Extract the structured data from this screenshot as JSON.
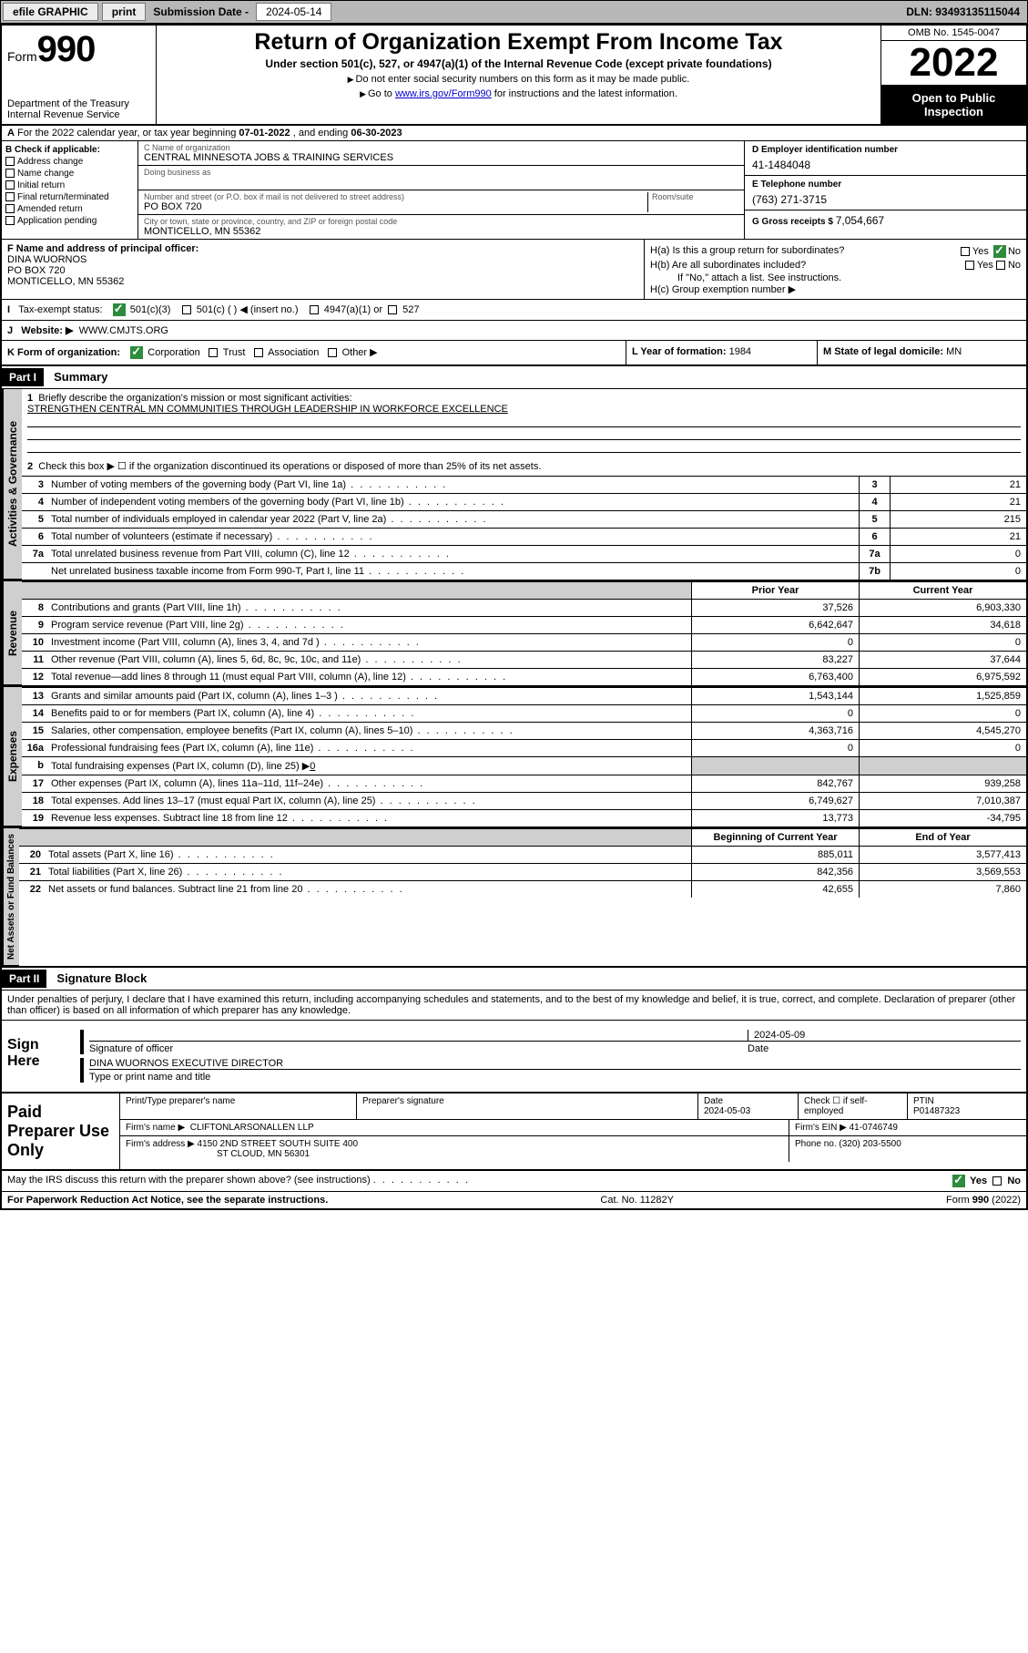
{
  "topbar": {
    "efile": "efile GRAPHIC",
    "print": "print",
    "sub_label": "Submission Date - ",
    "sub_date": "2024-05-14",
    "dln": "DLN: 93493135115044"
  },
  "header": {
    "form_label": "Form",
    "form_num": "990",
    "dept": "Department of the Treasury\nInternal Revenue Service",
    "title": "Return of Organization Exempt From Income Tax",
    "sub": "Under section 501(c), 527, or 4947(a)(1) of the Internal Revenue Code (except private foundations)",
    "sub2": "Do not enter social security numbers on this form as it may be made public.",
    "sub3_pre": "Go to ",
    "sub3_link": "www.irs.gov/Form990",
    "sub3_post": " for instructions and the latest information.",
    "omb": "OMB No. 1545-0047",
    "taxyear": "2022",
    "inspection": "Open to Public Inspection"
  },
  "row_a": {
    "text_pre": "For the 2022 calendar year, or tax year beginning ",
    "begin": "07-01-2022",
    "mid": " , and ending ",
    "end": "06-30-2023"
  },
  "box_b": {
    "hdr": "B Check if applicable:",
    "opts": [
      "Address change",
      "Name change",
      "Initial return",
      "Final return/terminated",
      "Amended return",
      "Application pending"
    ]
  },
  "box_c": {
    "name_lab": "C Name of organization",
    "name": "CENTRAL MINNESOTA JOBS & TRAINING SERVICES",
    "dba_lab": "Doing business as",
    "street_lab": "Number and street (or P.O. box if mail is not delivered to street address)",
    "room_lab": "Room/suite",
    "street": "PO BOX 720",
    "city_lab": "City or town, state or province, country, and ZIP or foreign postal code",
    "city": "MONTICELLO, MN  55362"
  },
  "box_d": {
    "lab": "D Employer identification number",
    "val": "41-1484048"
  },
  "box_e": {
    "lab": "E Telephone number",
    "val": "(763) 271-3715"
  },
  "box_g": {
    "lab": "G Gross receipts $",
    "val": "7,054,667"
  },
  "box_f": {
    "lab": "F Name and address of principal officer:",
    "name": "DINA WUORNOS",
    "addr1": "PO BOX 720",
    "addr2": "MONTICELLO, MN  55362"
  },
  "box_h": {
    "a_lab": "H(a)  Is this a group return for subordinates?",
    "yes": "Yes",
    "no": "No",
    "b_lab": "H(b)  Are all subordinates included?",
    "b_note": "If \"No,\" attach a list. See instructions.",
    "c_lab": "H(c)  Group exemption number ▶"
  },
  "row_i": {
    "lab": "Tax-exempt status:",
    "o1": "501(c)(3)",
    "o2": "501(c) (   ) ◀ (insert no.)",
    "o3": "4947(a)(1) or",
    "o4": "527"
  },
  "row_j": {
    "lab": "Website: ▶",
    "val": "WWW.CMJTS.ORG"
  },
  "row_k": {
    "lab": "K Form of organization:",
    "o1": "Corporation",
    "o2": "Trust",
    "o3": "Association",
    "o4": "Other ▶"
  },
  "row_l": {
    "lab": "L Year of formation:",
    "val": "1984"
  },
  "row_m": {
    "lab": "M State of legal domicile:",
    "val": "MN"
  },
  "part1": {
    "hdr": "Part I",
    "title": "Summary"
  },
  "vtabs": {
    "gov": "Activities & Governance",
    "rev": "Revenue",
    "exp": "Expenses",
    "net": "Net Assets or Fund Balances"
  },
  "mission": {
    "lab": "Briefly describe the organization's mission or most significant activities:",
    "val": "STRENGTHEN CENTRAL MN COMMUNITIES THROUGH LEADERSHIP IN WORKFORCE EXCELLENCE"
  },
  "line2": "Check this box ▶ ☐  if the organization discontinued its operations or disposed of more than 25% of its net assets.",
  "gov_lines": [
    {
      "n": "3",
      "d": "Number of voting members of the governing body (Part VI, line 1a)",
      "b": "3",
      "v": "21"
    },
    {
      "n": "4",
      "d": "Number of independent voting members of the governing body (Part VI, line 1b)",
      "b": "4",
      "v": "21"
    },
    {
      "n": "5",
      "d": "Total number of individuals employed in calendar year 2022 (Part V, line 2a)",
      "b": "5",
      "v": "215"
    },
    {
      "n": "6",
      "d": "Total number of volunteers (estimate if necessary)",
      "b": "6",
      "v": "21"
    },
    {
      "n": "7a",
      "d": "Total unrelated business revenue from Part VIII, column (C), line 12",
      "b": "7a",
      "v": "0"
    },
    {
      "n": "",
      "d": "Net unrelated business taxable income from Form 990-T, Part I, line 11",
      "b": "7b",
      "v": "0"
    }
  ],
  "col_hdrs": {
    "prior": "Prior Year",
    "curr": "Current Year"
  },
  "rev_lines": [
    {
      "n": "8",
      "d": "Contributions and grants (Part VIII, line 1h)",
      "p": "37,526",
      "c": "6,903,330"
    },
    {
      "n": "9",
      "d": "Program service revenue (Part VIII, line 2g)",
      "p": "6,642,647",
      "c": "34,618"
    },
    {
      "n": "10",
      "d": "Investment income (Part VIII, column (A), lines 3, 4, and 7d )",
      "p": "0",
      "c": "0"
    },
    {
      "n": "11",
      "d": "Other revenue (Part VIII, column (A), lines 5, 6d, 8c, 9c, 10c, and 11e)",
      "p": "83,227",
      "c": "37,644"
    },
    {
      "n": "12",
      "d": "Total revenue—add lines 8 through 11 (must equal Part VIII, column (A), line 12)",
      "p": "6,763,400",
      "c": "6,975,592"
    }
  ],
  "exp_lines": [
    {
      "n": "13",
      "d": "Grants and similar amounts paid (Part IX, column (A), lines 1–3 )",
      "p": "1,543,144",
      "c": "1,525,859"
    },
    {
      "n": "14",
      "d": "Benefits paid to or for members (Part IX, column (A), line 4)",
      "p": "0",
      "c": "0"
    },
    {
      "n": "15",
      "d": "Salaries, other compensation, employee benefits (Part IX, column (A), lines 5–10)",
      "p": "4,363,716",
      "c": "4,545,270"
    },
    {
      "n": "16a",
      "d": "Professional fundraising fees (Part IX, column (A), line 11e)",
      "p": "0",
      "c": "0"
    }
  ],
  "line16b": {
    "n": "b",
    "d": "Total fundraising expenses (Part IX, column (D), line 25) ▶",
    "v": "0"
  },
  "exp_lines2": [
    {
      "n": "17",
      "d": "Other expenses (Part IX, column (A), lines 11a–11d, 11f–24e)",
      "p": "842,767",
      "c": "939,258"
    },
    {
      "n": "18",
      "d": "Total expenses. Add lines 13–17 (must equal Part IX, column (A), line 25)",
      "p": "6,749,627",
      "c": "7,010,387"
    },
    {
      "n": "19",
      "d": "Revenue less expenses. Subtract line 18 from line 12",
      "p": "13,773",
      "c": "-34,795"
    }
  ],
  "net_hdrs": {
    "begin": "Beginning of Current Year",
    "end": "End of Year"
  },
  "net_lines": [
    {
      "n": "20",
      "d": "Total assets (Part X, line 16)",
      "p": "885,011",
      "c": "3,577,413"
    },
    {
      "n": "21",
      "d": "Total liabilities (Part X, line 26)",
      "p": "842,356",
      "c": "3,569,553"
    },
    {
      "n": "22",
      "d": "Net assets or fund balances. Subtract line 21 from line 20",
      "p": "42,655",
      "c": "7,860"
    }
  ],
  "part2": {
    "hdr": "Part II",
    "title": "Signature Block"
  },
  "declare": "Under penalties of perjury, I declare that I have examined this return, including accompanying schedules and statements, and to the best of my knowledge and belief, it is true, correct, and complete. Declaration of preparer (other than officer) is based on all information of which preparer has any knowledge.",
  "sign": {
    "here": "Sign Here",
    "sig_lab": "Signature of officer",
    "date_lab": "Date",
    "date": "2024-05-09",
    "name": "DINA WUORNOS  EXECUTIVE DIRECTOR",
    "name_lab": "Type or print name and title"
  },
  "paid": {
    "hdr": "Paid Preparer Use Only",
    "pt_name_lab": "Print/Type preparer's name",
    "sig_lab": "Preparer's signature",
    "date_lab": "Date",
    "date": "2024-05-03",
    "check_lab": "Check ☐ if self-employed",
    "ptin_lab": "PTIN",
    "ptin": "P01487323",
    "firm_name_lab": "Firm's name    ▶",
    "firm_name": "CLIFTONLARSONALLEN LLP",
    "firm_ein_lab": "Firm's EIN ▶",
    "firm_ein": "41-0746749",
    "firm_addr_lab": "Firm's address ▶",
    "firm_addr1": "4150 2ND STREET SOUTH SUITE 400",
    "firm_addr2": "ST CLOUD, MN  56301",
    "phone_lab": "Phone no.",
    "phone": "(320) 203-5500"
  },
  "footer": {
    "discuss": "May the IRS discuss this return with the preparer shown above? (see instructions)",
    "yes": "Yes",
    "no": "No",
    "pra": "For Paperwork Reduction Act Notice, see the separate instructions.",
    "cat": "Cat. No. 11282Y",
    "form": "Form 990 (2022)"
  }
}
